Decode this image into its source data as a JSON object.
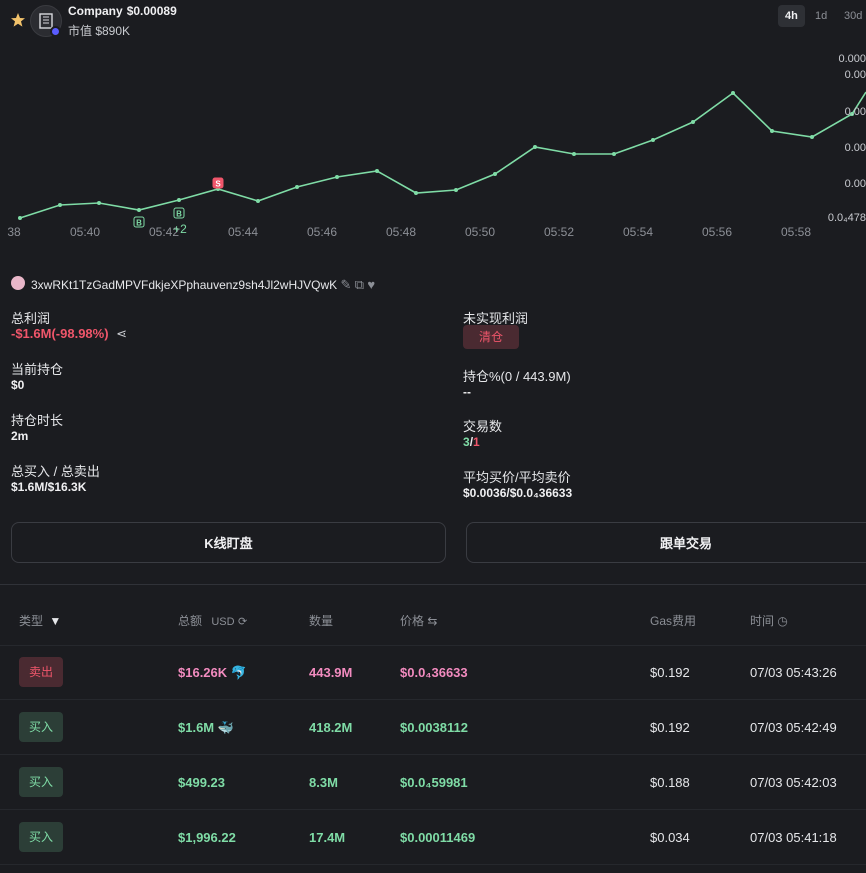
{
  "header": {
    "token_name": "Company",
    "token_price": "$0.00089",
    "market_cap": "市值 $890K",
    "timeframes": [
      "4h",
      "1d",
      "30d"
    ],
    "active_timeframe": "4h"
  },
  "chart_data": {
    "type": "line",
    "x": [
      "05:39",
      "05:40",
      "05:41",
      "05:42",
      "05:43",
      "05:44",
      "05:45",
      "05:46",
      "05:47",
      "05:48",
      "05:49",
      "05:50",
      "05:51",
      "05:52",
      "05:53",
      "05:54",
      "05:55",
      "05:56",
      "05:57",
      "05:58",
      "05:59"
    ],
    "x_tick_labels": [
      "38",
      "05:40",
      "05:42",
      "05:44",
      "05:46",
      "05:48",
      "05:50",
      "05:52",
      "05:54",
      "05:56",
      "05:58"
    ],
    "y_tick_labels": [
      "0.000",
      "0.00",
      "0.00",
      "0.00",
      "0.00",
      "0.0₄478"
    ],
    "markers": [
      {
        "label": "B",
        "kind": "buy"
      },
      {
        "label": "B",
        "kind": "buy"
      },
      {
        "label": "S",
        "kind": "sell"
      },
      {
        "label": "+2",
        "kind": "more"
      }
    ],
    "line_color": "#7fdca6"
  },
  "wallet": {
    "address": "3xwRKt1TzGadMPVFdkjeXPphauvenz9sh4Jl2wHJVQwK"
  },
  "stats": {
    "total_profit_label": "总利润",
    "total_profit_value": "-$1.6M(-98.98%)",
    "unrealized_label": "未实现利润",
    "clear_label": "清仓",
    "holding_label": "当前持仓",
    "holding_value": "$0",
    "holding_pct_label": "持仓%(0 / 443.9M)",
    "holding_pct_value": "--",
    "duration_label": "持仓时长",
    "duration_value": "2m",
    "trades_label": "交易数",
    "trades_buy": "3",
    "trades_sep": "/",
    "trades_sell": "1",
    "buy_sell_label": "总买入 / 总卖出",
    "buy_sell_value": "$1.6M/$16.3K",
    "avg_price_label": "平均买价/平均卖价",
    "avg_price_value": "$0.0036/$0.0₄36633"
  },
  "buttons": {
    "kline": "K线盯盘",
    "copy_trade": "跟单交易"
  },
  "table": {
    "headers": {
      "type": "类型",
      "total": "总额",
      "total_unit": "USD",
      "amount": "数量",
      "price": "价格",
      "gas": "Gas费用",
      "time": "时间"
    },
    "rows": [
      {
        "type": "卖出",
        "side": "sell",
        "total": "$16.26K",
        "icon": "dolphin-icon",
        "amount": "443.9M",
        "price": "$0.0₄36633",
        "gas": "$0.192",
        "time": "07/03 05:43:26"
      },
      {
        "type": "买入",
        "side": "buy",
        "total": "$1.6M",
        "icon": "whale-icon",
        "amount": "418.2M",
        "price": "$0.0038112",
        "gas": "$0.192",
        "time": "07/03 05:42:49"
      },
      {
        "type": "买入",
        "side": "buy",
        "total": "$499.23",
        "icon": "",
        "amount": "8.3M",
        "price": "$0.0₄59981",
        "gas": "$0.188",
        "time": "07/03 05:42:03"
      },
      {
        "type": "买入",
        "side": "buy",
        "total": "$1,996.22",
        "icon": "",
        "amount": "17.4M",
        "price": "$0.00011469",
        "gas": "$0.034",
        "time": "07/03 05:41:18"
      }
    ]
  }
}
